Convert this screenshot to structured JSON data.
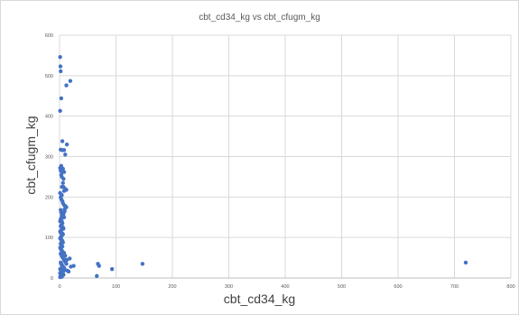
{
  "chart_data": {
    "type": "scatter",
    "title": "cbt_cd34_kg vs cbt_cfugm_kg",
    "xlabel": "cbt_cd34_kg",
    "ylabel": "cbt_cfugm_kg",
    "xlim": [
      0,
      800
    ],
    "ylim": [
      0,
      600
    ],
    "xticks": [
      "0",
      "100",
      "200",
      "300",
      "400",
      "500",
      "600",
      "700",
      "800"
    ],
    "yticks": [
      "0",
      "100",
      "200",
      "300",
      "400",
      "500",
      "600"
    ],
    "grid": true,
    "legend": "none",
    "marker_color": "#4472c4",
    "series": [
      {
        "x": [
          1,
          1.5,
          2,
          1,
          3,
          12,
          19,
          2,
          5,
          5,
          8,
          13,
          3,
          6,
          10,
          1,
          2,
          3,
          4,
          5,
          7,
          8,
          6,
          4,
          10,
          8,
          7,
          12,
          1,
          2,
          3,
          4,
          5,
          6,
          8,
          10,
          9,
          12,
          2,
          3,
          5,
          7,
          9,
          4,
          6,
          8,
          3,
          2,
          1,
          4,
          5,
          3,
          2,
          6,
          7,
          4,
          3,
          1,
          2,
          5,
          6,
          4,
          3,
          2,
          1,
          3,
          5,
          4,
          6,
          2,
          3,
          4,
          5,
          1,
          2,
          3,
          4,
          5,
          6,
          2,
          3,
          4,
          5,
          6,
          7,
          8,
          9,
          10,
          2,
          3,
          4,
          5,
          6,
          8,
          1,
          2,
          3,
          4,
          5,
          6,
          7,
          2,
          3,
          4,
          1,
          5,
          10,
          12,
          13,
          8,
          6,
          4,
          2,
          1,
          20,
          14,
          18,
          25,
          11,
          16,
          10,
          68,
          70,
          93,
          147,
          66,
          720
        ],
        "y": [
          546,
          523,
          511,
          413,
          444,
          476,
          487,
          317,
          316,
          338,
          316,
          330,
          277,
          270,
          305,
          272,
          265,
          255,
          250,
          262,
          245,
          262,
          235,
          225,
          220,
          215,
          225,
          218,
          210,
          200,
          195,
          205,
          190,
          185,
          180,
          178,
          170,
          175,
          168,
          162,
          160,
          158,
          165,
          155,
          150,
          150,
          148,
          145,
          140,
          140,
          135,
          130,
          128,
          125,
          122,
          120,
          118,
          115,
          112,
          110,
          108,
          105,
          102,
          100,
          98,
          95,
          92,
          90,
          88,
          85,
          82,
          80,
          78,
          75,
          72,
          70,
          68,
          65,
          62,
          60,
          58,
          55,
          52,
          50,
          48,
          45,
          42,
          40,
          38,
          35,
          32,
          30,
          28,
          25,
          22,
          20,
          18,
          15,
          12,
          10,
          8,
          6,
          5,
          3,
          2,
          28,
          55,
          35,
          45,
          62,
          15,
          22,
          8,
          12,
          28,
          18,
          48,
          30,
          40,
          16,
          20,
          35,
          30,
          22,
          35,
          5,
          38
        ]
      }
    ]
  }
}
